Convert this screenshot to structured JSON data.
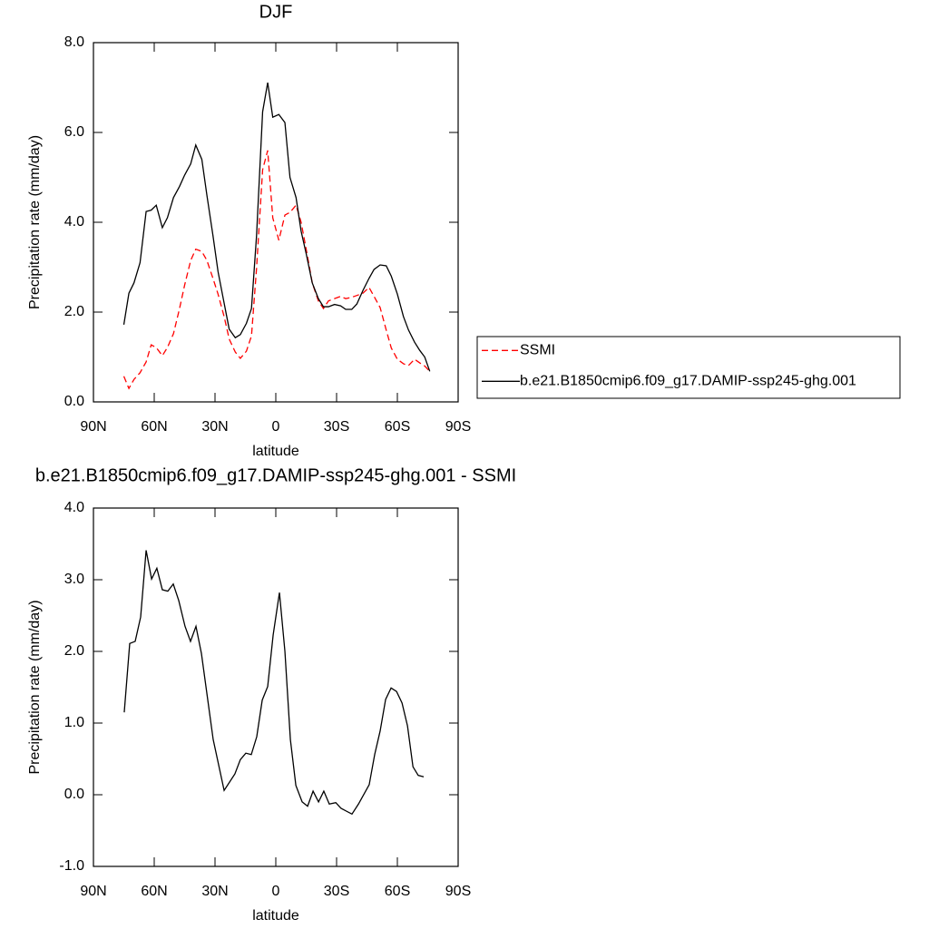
{
  "chart_data": [
    {
      "type": "line",
      "title": "DJF",
      "xlabel": "latitude",
      "ylabel": "Precipitation rate (mm/day)",
      "xlim": [
        90,
        -90
      ],
      "xticks": [
        {
          "value": 90,
          "label": "90N"
        },
        {
          "value": 60,
          "label": "60N"
        },
        {
          "value": 30,
          "label": "30N"
        },
        0,
        {
          "value": -30,
          "label": "30S"
        },
        {
          "value": -60,
          "label": "60S"
        },
        {
          "value": -90,
          "label": "90S"
        }
      ],
      "ylim": [
        0,
        8
      ],
      "yticks": [
        {
          "value": 0,
          "label": "0.0"
        },
        {
          "value": 2,
          "label": "2.0"
        },
        {
          "value": 4,
          "label": "4.0"
        },
        {
          "value": 6,
          "label": "6.0"
        },
        {
          "value": 8,
          "label": "8.0"
        }
      ],
      "legend": "outside-right",
      "x": [
        75,
        72.5,
        70,
        67,
        64,
        61.5,
        59,
        56,
        53.5,
        50.5,
        47.5,
        45,
        42,
        39.5,
        36.5,
        34,
        31,
        28.5,
        25.5,
        23,
        20,
        17.5,
        14.5,
        12,
        9.5,
        6.5,
        4,
        1.5,
        -1.5,
        -4.5,
        -7,
        -10,
        -12.5,
        -15,
        -18,
        -21,
        -23.5,
        -26,
        -29,
        -32,
        -34.5,
        -37.5,
        -40,
        -43,
        -46,
        -48.5,
        -51.5,
        -54.5,
        -57,
        -60,
        -63,
        -65.5,
        -68.5,
        -71,
        -73.5,
        -76
      ],
      "series": [
        {
          "name": "SSMI",
          "color": "#ff0000",
          "dash": "dashed",
          "values": [
            0.57,
            0.3,
            0.5,
            0.65,
            0.89,
            1.27,
            1.21,
            1.03,
            1.21,
            1.52,
            2.08,
            2.6,
            3.15,
            3.4,
            3.35,
            3.15,
            2.75,
            2.4,
            1.9,
            1.4,
            1.11,
            0.97,
            1.13,
            1.47,
            2.97,
            5.17,
            5.6,
            4.1,
            3.6,
            4.16,
            4.22,
            4.38,
            4.0,
            3.4,
            2.65,
            2.25,
            2.08,
            2.25,
            2.3,
            2.35,
            2.3,
            2.33,
            2.37,
            2.42,
            2.55,
            2.35,
            2.1,
            1.6,
            1.2,
            0.95,
            0.85,
            0.81,
            0.95,
            0.87,
            0.8,
            0.68
          ]
        },
        {
          "name": "b.e21.B1850cmip6.f09_g17.DAMIP-ssp245-ghg.001",
          "color": "#000000",
          "dash": "solid",
          "values": [
            1.72,
            2.42,
            2.65,
            3.1,
            4.24,
            4.27,
            4.38,
            3.88,
            4.1,
            4.55,
            4.8,
            5.05,
            5.3,
            5.72,
            5.4,
            4.6,
            3.7,
            2.9,
            2.2,
            1.62,
            1.43,
            1.5,
            1.75,
            2.08,
            3.7,
            6.46,
            7.11,
            6.34,
            6.4,
            6.22,
            5.0,
            4.55,
            3.8,
            3.3,
            2.65,
            2.3,
            2.12,
            2.12,
            2.17,
            2.14,
            2.06,
            2.06,
            2.18,
            2.48,
            2.75,
            2.95,
            3.05,
            3.03,
            2.8,
            2.4,
            1.9,
            1.6,
            1.33,
            1.15,
            1.0,
            0.68
          ]
        }
      ]
    },
    {
      "type": "line",
      "title": "b.e21.B1850cmip6.f09_g17.DAMIP-ssp245-ghg.001 - SSMI",
      "xlabel": "latitude",
      "ylabel": "Precipitation rate (mm/day)",
      "xlim": [
        90,
        -90
      ],
      "xticks": [
        {
          "value": 90,
          "label": "90N"
        },
        {
          "value": 60,
          "label": "60N"
        },
        {
          "value": 30,
          "label": "30N"
        },
        0,
        {
          "value": -30,
          "label": "30S"
        },
        {
          "value": -60,
          "label": "60S"
        },
        {
          "value": -90,
          "label": "90S"
        }
      ],
      "ylim": [
        -1,
        4
      ],
      "yticks": [
        {
          "value": -1,
          "label": "-1.0"
        },
        {
          "value": 0,
          "label": "0.0"
        },
        {
          "value": 1,
          "label": "1.0"
        },
        {
          "value": 2,
          "label": "2.0"
        },
        {
          "value": 3,
          "label": "3.0"
        },
        {
          "value": 4,
          "label": "4.0"
        }
      ],
      "x": [
        74.8,
        72.1,
        69.4,
        66.7,
        64,
        61.3,
        58.7,
        56,
        53.3,
        50.6,
        47.9,
        44.8,
        42.1,
        39.4,
        36.7,
        34,
        30.9,
        25.5,
        20.2,
        17.5,
        14.8,
        12.1,
        9.4,
        6.7,
        4,
        1.3,
        -1.8,
        -4.5,
        -7.2,
        -9.9,
        -13,
        -15.7,
        -18.4,
        -21.1,
        -23.7,
        -26.4,
        -29.6,
        -32.2,
        -37.6,
        -40.8,
        -46.1,
        -48.8,
        -51.5,
        -54.2,
        -56.9,
        -59.6,
        -62.3,
        -65,
        -67.7,
        -70.3,
        -73
      ],
      "series": [
        {
          "color": "#000000",
          "dash": "solid",
          "values": [
            1.15,
            2.11,
            2.14,
            2.48,
            3.41,
            3.01,
            3.16,
            2.86,
            2.84,
            2.94,
            2.71,
            2.35,
            2.14,
            2.35,
            1.97,
            1.41,
            0.77,
            0.06,
            0.29,
            0.49,
            0.58,
            0.56,
            0.81,
            1.32,
            1.51,
            2.23,
            2.82,
            2.0,
            0.77,
            0.13,
            -0.1,
            -0.16,
            0.05,
            -0.1,
            0.05,
            -0.13,
            -0.11,
            -0.19,
            -0.27,
            -0.13,
            0.14,
            0.56,
            0.89,
            1.33,
            1.49,
            1.44,
            1.28,
            0.96,
            0.39,
            0.27,
            0.25
          ]
        }
      ]
    }
  ]
}
